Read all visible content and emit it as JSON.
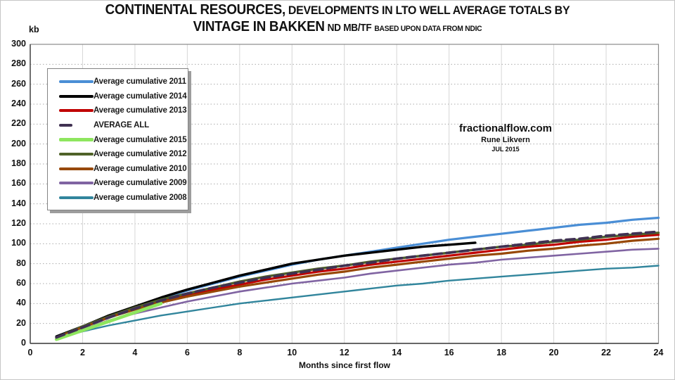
{
  "title": {
    "line1_main": "CONTINENTAL RESOURCES,",
    "line1_rest": "DEVELOPMENTS IN LTO WELL AVERAGE TOTALS BY",
    "line2_main": "VINTAGE IN BAKKEN",
    "line2_unit": "ND MB/TF",
    "line2_note": "BASED UPON  DATA FROM NDIC"
  },
  "watermark": {
    "site": "fractionalflow.com",
    "author": "Rune Likvern",
    "date": "JUL 2015"
  },
  "chart_data": {
    "type": "line",
    "title": "Continental Resources, developments in LTO well average totals by vintage in Bakken ND MB/TF",
    "ylabel": "kb",
    "xlabel": "Months since first flow",
    "xlim": [
      0,
      24
    ],
    "ylim": [
      0,
      300
    ],
    "x_ticks": [
      0,
      2,
      4,
      6,
      8,
      10,
      12,
      14,
      16,
      18,
      20,
      22,
      24
    ],
    "y_ticks": [
      0,
      20,
      40,
      60,
      80,
      100,
      120,
      140,
      160,
      180,
      200,
      220,
      240,
      260,
      280,
      300
    ],
    "grid": {
      "vertical": "solid",
      "horizontal": "dotted"
    },
    "legend_position": "upper-left",
    "x_months": [
      1,
      2,
      3,
      4,
      5,
      6,
      7,
      8,
      9,
      10,
      11,
      12,
      13,
      14,
      15,
      16,
      17,
      18,
      19,
      20,
      21,
      22,
      23,
      24
    ],
    "series": [
      {
        "name": "Average cumulative 2011",
        "color": "#4a8ed5",
        "dash": "",
        "width": 3.2,
        "z": 1,
        "values": [
          7,
          17,
          27,
          36,
          45,
          53,
          60,
          67,
          73,
          79,
          84,
          88,
          92,
          96,
          100,
          104,
          107,
          110,
          113,
          116,
          119,
          121,
          124,
          126
        ]
      },
      {
        "name": "Average cumulative 2014",
        "color": "#000000",
        "dash": "",
        "width": 3.4,
        "z": 2,
        "values": [
          7,
          17,
          28,
          37,
          46,
          54,
          61,
          68,
          74,
          80,
          84,
          88,
          91,
          94,
          97,
          99,
          101
        ]
      },
      {
        "name": "Average cumulative 2013",
        "color": "#c00000",
        "dash": "",
        "width": 3.2,
        "z": 3,
        "values": [
          6,
          16,
          26,
          35,
          42,
          48,
          54,
          59,
          64,
          68,
          72,
          75,
          79,
          82,
          85,
          88,
          91,
          94,
          97,
          99,
          102,
          104,
          107,
          109
        ]
      },
      {
        "name": "AVERAGE ALL",
        "color": "#403152",
        "dash": "12 7",
        "width": 3.8,
        "z": 9,
        "values": [
          6,
          16,
          26,
          35,
          43,
          50,
          56,
          61,
          66,
          70,
          74,
          78,
          81,
          85,
          88,
          91,
          94,
          97,
          100,
          103,
          105,
          108,
          110,
          112
        ]
      },
      {
        "name": "Average cumulative 2015",
        "color": "#8ee65e",
        "dash": "",
        "width": 4.6,
        "z": 8,
        "values": [
          4,
          13,
          22,
          31,
          40
        ]
      },
      {
        "name": "Average cumulative 2012",
        "color": "#4f6228",
        "dash": "",
        "width": 3.4,
        "z": 4,
        "values": [
          6,
          17,
          27,
          36,
          44,
          50,
          56,
          62,
          67,
          71,
          75,
          78,
          82,
          85,
          88,
          91,
          94,
          97,
          99,
          102,
          104,
          107,
          109,
          111
        ]
      },
      {
        "name": "Average cumulative 2010",
        "color": "#974807",
        "dash": "",
        "width": 3.2,
        "z": 5,
        "values": [
          6,
          16,
          26,
          34,
          41,
          47,
          52,
          57,
          61,
          65,
          69,
          72,
          76,
          79,
          82,
          85,
          88,
          90,
          93,
          95,
          98,
          100,
          103,
          105
        ]
      },
      {
        "name": "Average cumulative 2009",
        "color": "#8064a2",
        "dash": "",
        "width": 2.6,
        "z": 6,
        "values": [
          5,
          14,
          23,
          30,
          36,
          42,
          47,
          52,
          56,
          60,
          63,
          66,
          70,
          73,
          76,
          79,
          81,
          84,
          86,
          88,
          90,
          92,
          94,
          95
        ]
      },
      {
        "name": "Average cumulative 2008",
        "color": "#31859c",
        "dash": "",
        "width": 2.4,
        "z": 7,
        "values": [
          5,
          12,
          18,
          23,
          28,
          32,
          36,
          40,
          43,
          46,
          49,
          52,
          55,
          58,
          60,
          63,
          65,
          67,
          69,
          71,
          73,
          75,
          76,
          78
        ]
      }
    ]
  }
}
